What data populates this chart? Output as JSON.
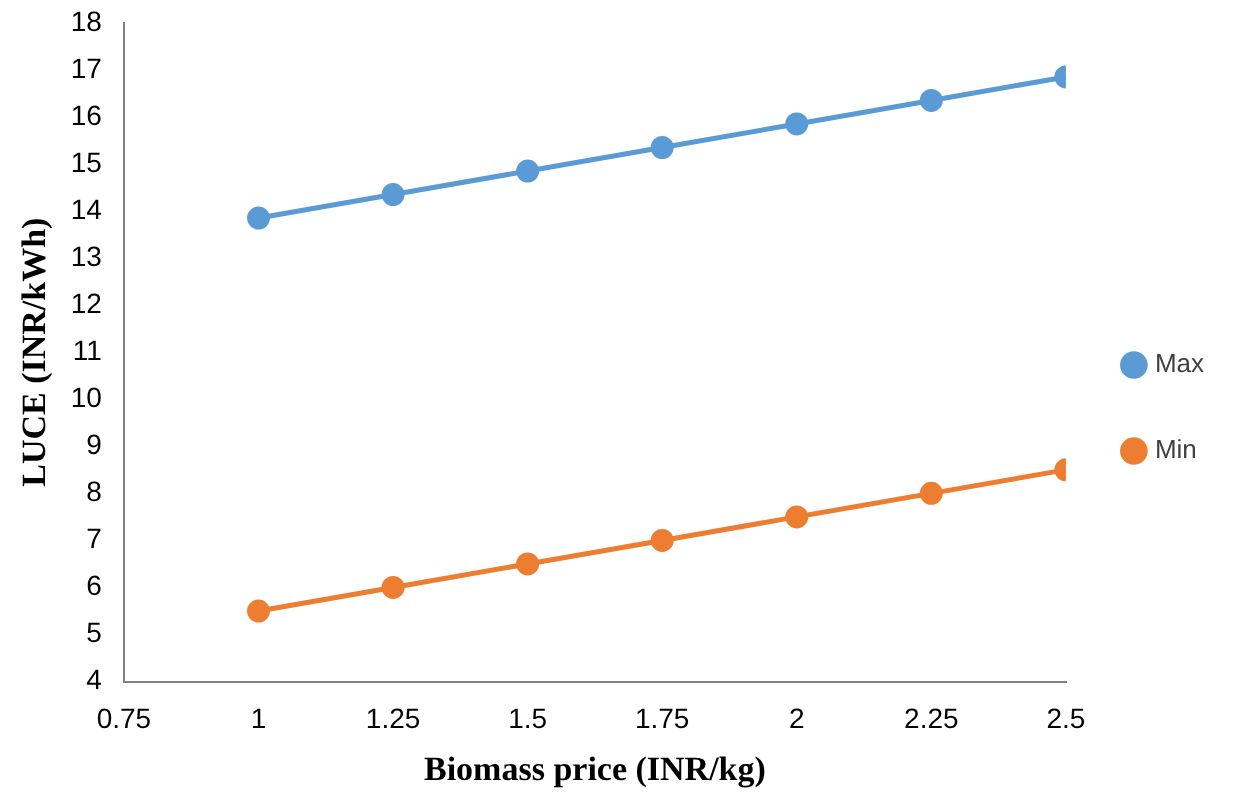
{
  "chart_data": {
    "type": "line",
    "xlabel": "Biomass price (INR/kg)",
    "ylabel": "LUCE (INR/kWh)",
    "x": [
      1,
      1.25,
      1.5,
      1.75,
      2,
      2.25,
      2.5
    ],
    "series": [
      {
        "name": "Max",
        "color": "#5b9bd5",
        "values": [
          13.85,
          14.35,
          14.85,
          15.35,
          15.85,
          16.35,
          16.85
        ]
      },
      {
        "name": "Min",
        "color": "#ed7d31",
        "values": [
          5.5,
          6,
          6.5,
          7,
          7.5,
          8,
          8.5
        ]
      }
    ],
    "xlim": [
      0.75,
      2.5
    ],
    "xticks": [
      0.75,
      1,
      1.25,
      1.5,
      1.75,
      2,
      2.25,
      2.5
    ],
    "ylim": [
      4,
      18
    ],
    "yticks": [
      4,
      5,
      6,
      7,
      8,
      9,
      10,
      11,
      12,
      13,
      14,
      15,
      16,
      17,
      18
    ],
    "grid": false,
    "legend": "right",
    "marker": "circle",
    "line_style": "solid"
  }
}
